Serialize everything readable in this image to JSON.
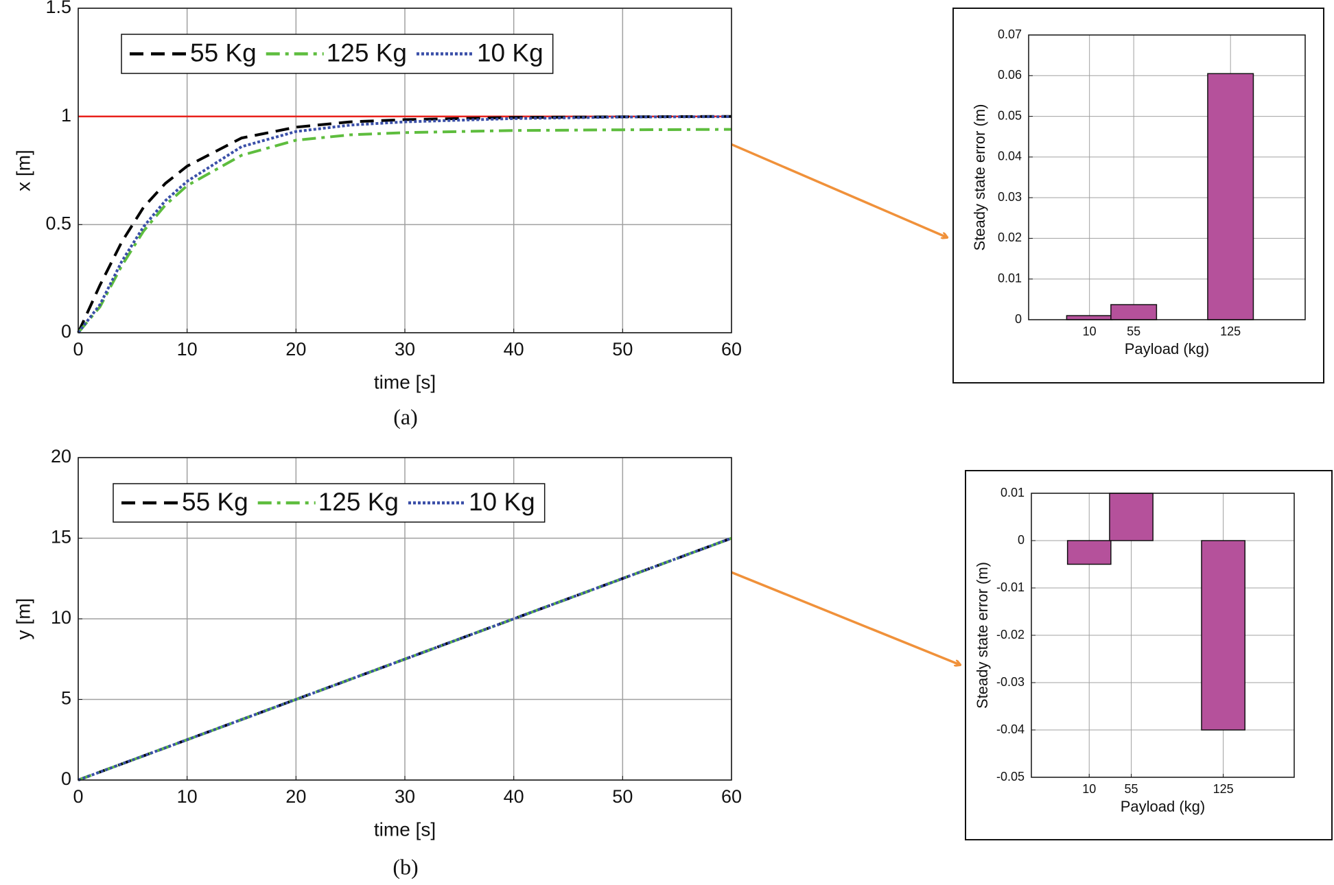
{
  "chart_data": [
    {
      "type": "line",
      "caption": "(a)",
      "xlabel": "time [s]",
      "ylabel": "x [m]",
      "x": [
        0,
        2,
        4,
        6,
        8,
        10,
        15,
        20,
        25,
        30,
        40,
        50,
        60
      ],
      "xlim": [
        0,
        60
      ],
      "xticks": [
        0,
        10,
        20,
        30,
        40,
        50,
        60
      ],
      "ylim": [
        0,
        1.5
      ],
      "yticks": [
        0,
        0.5,
        1,
        1.5
      ],
      "grid": true,
      "series": [
        {
          "name": "55 Kg",
          "color": "#000000",
          "dash": "dashed",
          "values": [
            0,
            0.22,
            0.42,
            0.58,
            0.69,
            0.77,
            0.9,
            0.95,
            0.975,
            0.985,
            0.995,
            0.998,
            1
          ]
        },
        {
          "name": "125 Kg",
          "color": "#5ebd3e",
          "dash": "dashdot",
          "values": [
            0,
            0.12,
            0.31,
            0.47,
            0.59,
            0.68,
            0.82,
            0.89,
            0.915,
            0.925,
            0.935,
            0.938,
            0.94
          ]
        },
        {
          "name": "10 Kg",
          "color": "#3a4fa8",
          "dash": "dotted",
          "values": [
            0,
            0.13,
            0.33,
            0.49,
            0.61,
            0.7,
            0.86,
            0.93,
            0.96,
            0.975,
            0.99,
            0.997,
            0.999
          ]
        },
        {
          "color": "#e8221c",
          "dash": "solid",
          "values": [
            1,
            1,
            1,
            1,
            1,
            1,
            1,
            1,
            1,
            1,
            1,
            1,
            1
          ]
        }
      ]
    },
    {
      "type": "bar",
      "xlabel": "Payload (kg)",
      "ylabel": "Steady state error (m)",
      "categories": [
        "10",
        "55",
        "125"
      ],
      "values": [
        0.001,
        0.0037,
        0.0605
      ],
      "color": "#b5519b",
      "ylim": [
        0,
        0.07
      ],
      "yticks": [
        0,
        0.01,
        0.02,
        0.03,
        0.04,
        0.05,
        0.06,
        0.07
      ],
      "grid": true
    },
    {
      "type": "line",
      "caption": "(b)",
      "xlabel": "time [s]",
      "ylabel": "y [m]",
      "x": [
        0,
        60
      ],
      "xlim": [
        0,
        60
      ],
      "xticks": [
        0,
        10,
        20,
        30,
        40,
        50,
        60
      ],
      "ylim": [
        0,
        20
      ],
      "yticks": [
        0,
        5,
        10,
        15,
        20
      ],
      "grid": true,
      "series": [
        {
          "name": "55 Kg",
          "color": "#000000",
          "dash": "dashed",
          "values": [
            0,
            15
          ]
        },
        {
          "name": "125 Kg",
          "color": "#5ebd3e",
          "dash": "dashdot",
          "values": [
            0,
            15
          ]
        },
        {
          "name": "10 Kg",
          "color": "#3a4fa8",
          "dash": "dotted",
          "values": [
            0,
            15
          ]
        }
      ]
    },
    {
      "type": "bar",
      "xlabel": "Payload (kg)",
      "ylabel": "Steady state error (m)",
      "categories": [
        "10",
        "55",
        "125"
      ],
      "values": [
        -0.005,
        0.01,
        -0.04
      ],
      "color": "#b5519b",
      "ylim": [
        -0.05,
        0.01
      ],
      "yticks": [
        -0.05,
        -0.04,
        -0.03,
        -0.02,
        -0.01,
        0,
        0.01
      ],
      "grid": true
    }
  ]
}
